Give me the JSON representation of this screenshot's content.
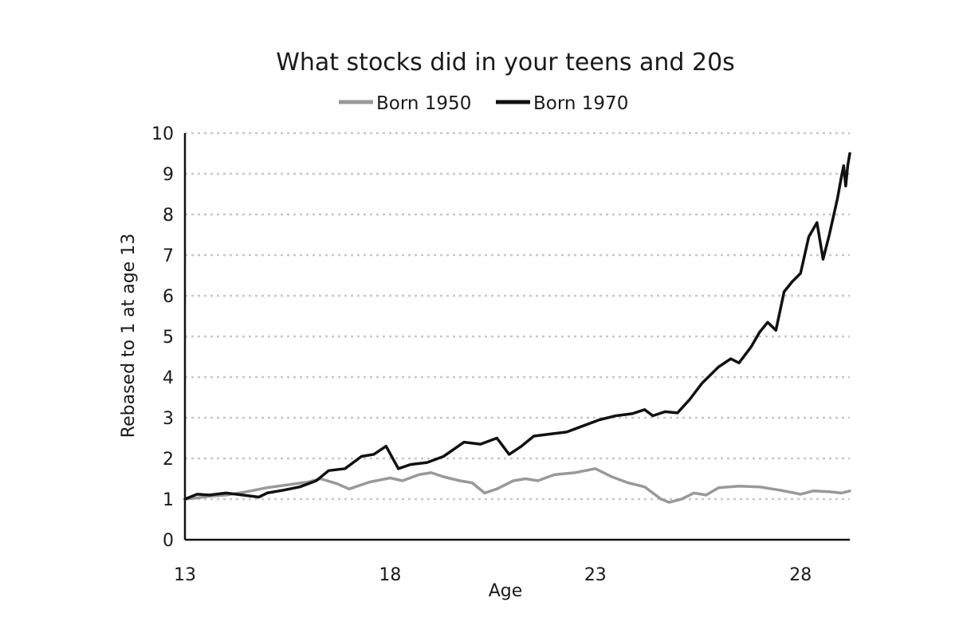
{
  "chart_data": {
    "type": "line",
    "title": "What stocks did in your teens and 20s",
    "xlabel": "Age",
    "ylabel": "Rebased to 1 at age 13",
    "xlim": [
      13,
      29.2
    ],
    "ylim": [
      0,
      10
    ],
    "x_ticks": [
      13,
      18,
      23,
      28
    ],
    "y_ticks": [
      0,
      1,
      2,
      3,
      4,
      5,
      6,
      7,
      8,
      9,
      10
    ],
    "grid": "horizontal dotted",
    "legend_position": "top",
    "series": [
      {
        "name": "Born 1950",
        "color": "#999999",
        "points": [
          [
            13.0,
            1.0
          ],
          [
            13.3,
            1.03
          ],
          [
            13.6,
            1.07
          ],
          [
            14.0,
            1.1
          ],
          [
            14.5,
            1.18
          ],
          [
            15.0,
            1.28
          ],
          [
            15.5,
            1.35
          ],
          [
            16.0,
            1.42
          ],
          [
            16.3,
            1.5
          ],
          [
            16.7,
            1.38
          ],
          [
            17.0,
            1.25
          ],
          [
            17.5,
            1.42
          ],
          [
            18.0,
            1.52
          ],
          [
            18.3,
            1.45
          ],
          [
            18.7,
            1.6
          ],
          [
            19.0,
            1.65
          ],
          [
            19.3,
            1.55
          ],
          [
            19.7,
            1.45
          ],
          [
            20.0,
            1.4
          ],
          [
            20.3,
            1.15
          ],
          [
            20.6,
            1.25
          ],
          [
            21.0,
            1.45
          ],
          [
            21.3,
            1.5
          ],
          [
            21.6,
            1.45
          ],
          [
            22.0,
            1.6
          ],
          [
            22.5,
            1.65
          ],
          [
            23.0,
            1.75
          ],
          [
            23.4,
            1.55
          ],
          [
            23.8,
            1.4
          ],
          [
            24.2,
            1.3
          ],
          [
            24.6,
            1.0
          ],
          [
            24.8,
            0.92
          ],
          [
            25.1,
            1.0
          ],
          [
            25.4,
            1.15
          ],
          [
            25.7,
            1.1
          ],
          [
            26.0,
            1.28
          ],
          [
            26.5,
            1.32
          ],
          [
            27.0,
            1.3
          ],
          [
            27.5,
            1.22
          ],
          [
            28.0,
            1.12
          ],
          [
            28.3,
            1.2
          ],
          [
            28.7,
            1.18
          ],
          [
            29.0,
            1.15
          ],
          [
            29.2,
            1.2
          ]
        ]
      },
      {
        "name": "Born 1970",
        "color": "#111111",
        "points": [
          [
            13.0,
            1.0
          ],
          [
            13.3,
            1.12
          ],
          [
            13.6,
            1.1
          ],
          [
            14.0,
            1.15
          ],
          [
            14.4,
            1.1
          ],
          [
            14.8,
            1.05
          ],
          [
            15.0,
            1.15
          ],
          [
            15.4,
            1.22
          ],
          [
            15.8,
            1.3
          ],
          [
            16.2,
            1.45
          ],
          [
            16.5,
            1.7
          ],
          [
            16.9,
            1.75
          ],
          [
            17.3,
            2.05
          ],
          [
            17.6,
            2.1
          ],
          [
            17.9,
            2.3
          ],
          [
            18.2,
            1.75
          ],
          [
            18.5,
            1.85
          ],
          [
            18.9,
            1.9
          ],
          [
            19.3,
            2.05
          ],
          [
            19.8,
            2.4
          ],
          [
            20.2,
            2.35
          ],
          [
            20.6,
            2.5
          ],
          [
            20.9,
            2.1
          ],
          [
            21.2,
            2.3
          ],
          [
            21.5,
            2.55
          ],
          [
            21.9,
            2.6
          ],
          [
            22.3,
            2.65
          ],
          [
            22.7,
            2.8
          ],
          [
            23.1,
            2.95
          ],
          [
            23.5,
            3.05
          ],
          [
            23.9,
            3.1
          ],
          [
            24.2,
            3.2
          ],
          [
            24.4,
            3.05
          ],
          [
            24.7,
            3.15
          ],
          [
            25.0,
            3.12
          ],
          [
            25.3,
            3.45
          ],
          [
            25.6,
            3.85
          ],
          [
            26.0,
            4.25
          ],
          [
            26.3,
            4.45
          ],
          [
            26.5,
            4.35
          ],
          [
            26.8,
            4.75
          ],
          [
            27.0,
            5.1
          ],
          [
            27.2,
            5.35
          ],
          [
            27.4,
            5.15
          ],
          [
            27.6,
            6.1
          ],
          [
            27.8,
            6.35
          ],
          [
            28.0,
            6.55
          ],
          [
            28.2,
            7.45
          ],
          [
            28.4,
            7.8
          ],
          [
            28.55,
            6.9
          ],
          [
            28.7,
            7.5
          ],
          [
            28.9,
            8.4
          ],
          [
            29.0,
            8.95
          ],
          [
            29.05,
            9.2
          ],
          [
            29.1,
            8.7
          ],
          [
            29.15,
            9.2
          ],
          [
            29.2,
            9.5
          ]
        ]
      }
    ]
  }
}
